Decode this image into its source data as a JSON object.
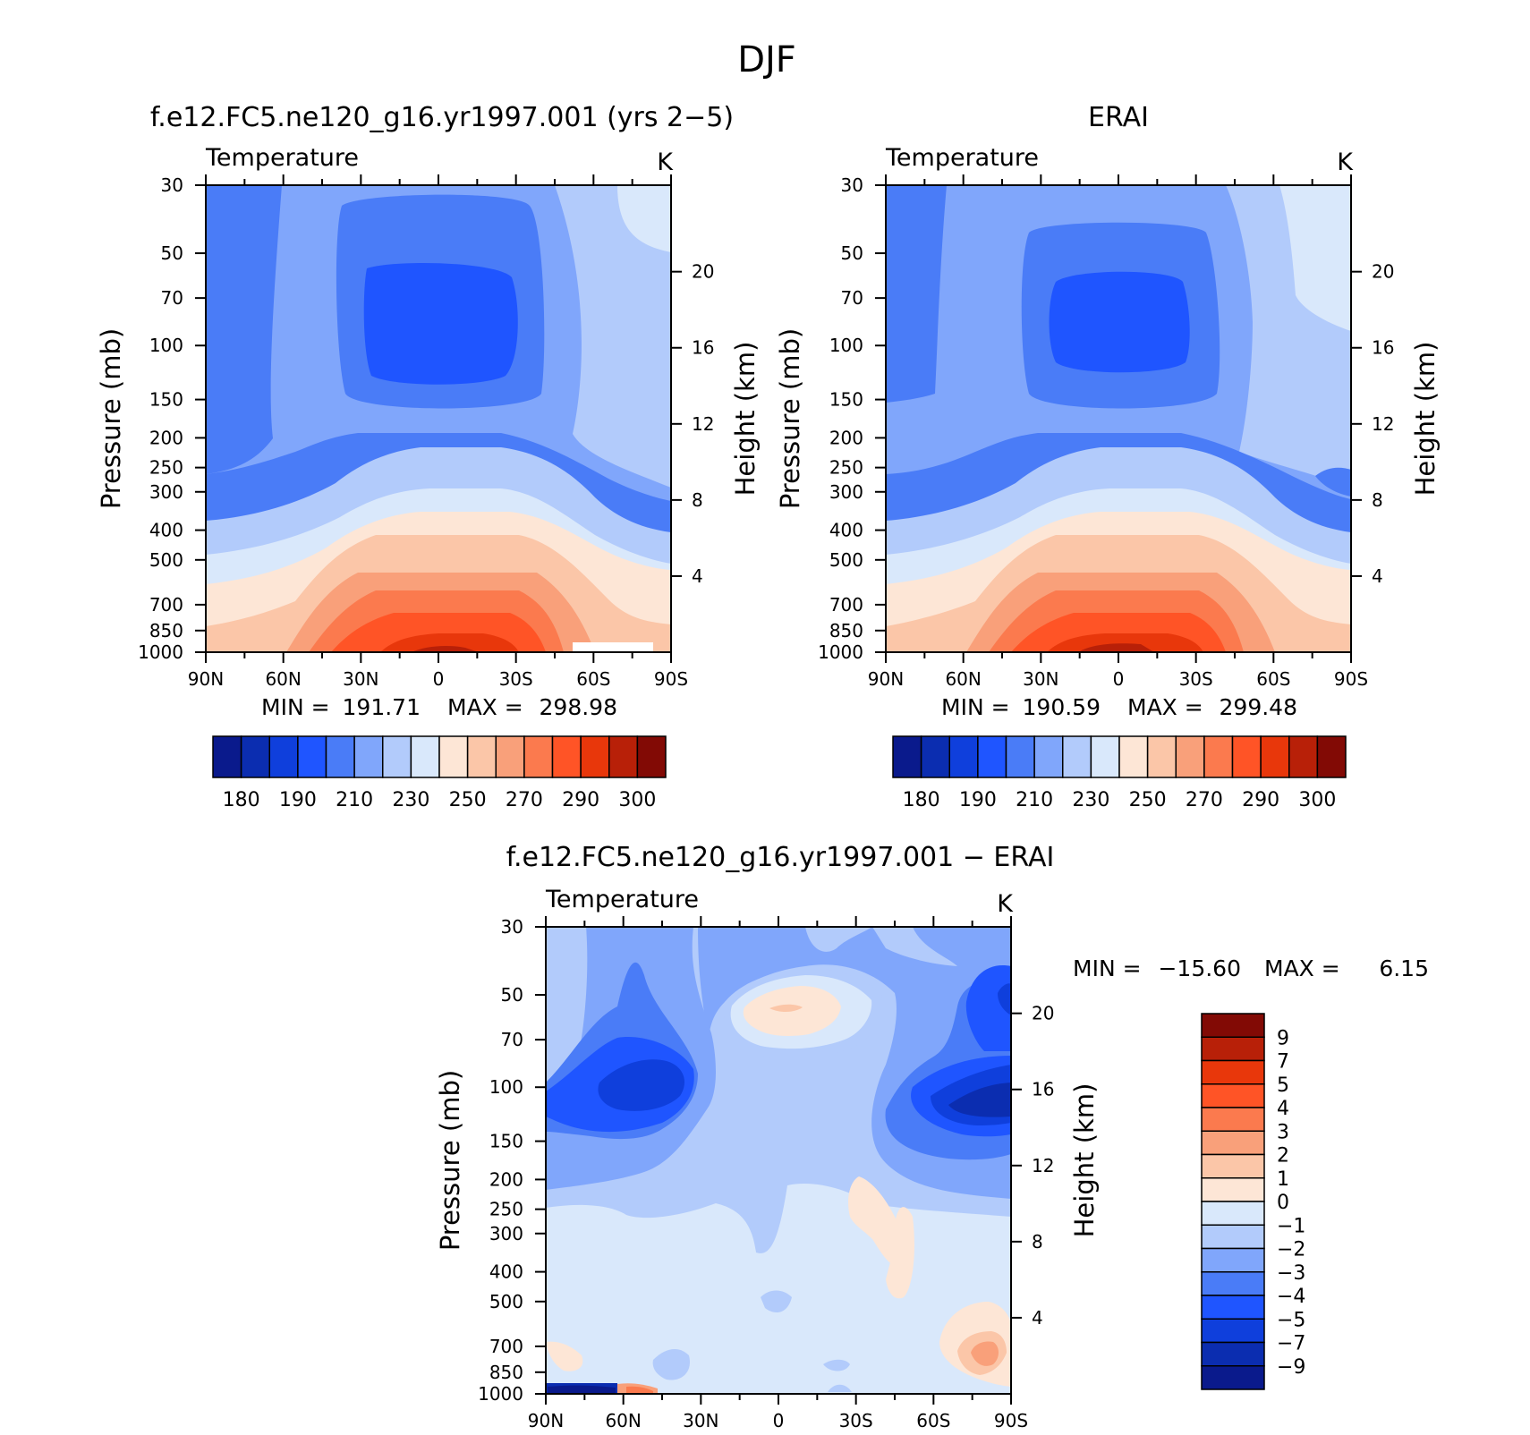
{
  "title": "DJF",
  "chart_data": [
    {
      "type": "contour",
      "title": "f.e12.FC5.ne120_g16.yr1997.001 (yrs 2−5)",
      "subtitle": "Temperature",
      "units": "K",
      "ylabel": "Pressure (mb)",
      "ylabel_right": "Height (km)",
      "x_ticks": [
        "90N",
        "60N",
        "30N",
        "0",
        "30S",
        "60S",
        "90S"
      ],
      "y_ticks": [
        "30",
        "50",
        "70",
        "100",
        "150",
        "200",
        "250",
        "300",
        "400",
        "500",
        "700",
        "850",
        "1000"
      ],
      "height_ticks": [
        "20",
        "16",
        "12",
        "8",
        "4"
      ],
      "stats": {
        "min_label": "MIN =",
        "min": "191.71",
        "max_label": "MAX =",
        "max": "298.98"
      },
      "colorbar": {
        "levels": [
          "180",
          "190",
          "210",
          "230",
          "250",
          "270",
          "290",
          "300"
        ],
        "colors": [
          "#0a1a8c",
          "#0b2db0",
          "#0f3fdc",
          "#1f55ff",
          "#4a7cf7",
          "#80a6fb",
          "#b2cbfb",
          "#d9e8fb",
          "#fde6d6",
          "#fbc6a8",
          "#f9a07a",
          "#fb7a4e",
          "#ff5426",
          "#e8370b",
          "#b82008",
          "#820a05"
        ]
      }
    },
    {
      "type": "contour",
      "title": "ERAI",
      "subtitle": "Temperature",
      "units": "K",
      "ylabel": "Pressure (mb)",
      "ylabel_right": "Height (km)",
      "x_ticks": [
        "90N",
        "60N",
        "30N",
        "0",
        "30S",
        "60S",
        "90S"
      ],
      "y_ticks": [
        "30",
        "50",
        "70",
        "100",
        "150",
        "200",
        "250",
        "300",
        "400",
        "500",
        "700",
        "850",
        "1000"
      ],
      "height_ticks": [
        "20",
        "16",
        "12",
        "8",
        "4"
      ],
      "stats": {
        "min_label": "MIN =",
        "min": "190.59",
        "max_label": "MAX =",
        "max": "299.48"
      },
      "colorbar": {
        "levels": [
          "180",
          "190",
          "210",
          "230",
          "250",
          "270",
          "290",
          "300"
        ],
        "colors": [
          "#0a1a8c",
          "#0b2db0",
          "#0f3fdc",
          "#1f55ff",
          "#4a7cf7",
          "#80a6fb",
          "#b2cbfb",
          "#d9e8fb",
          "#fde6d6",
          "#fbc6a8",
          "#f9a07a",
          "#fb7a4e",
          "#ff5426",
          "#e8370b",
          "#b82008",
          "#820a05"
        ]
      }
    },
    {
      "type": "contour",
      "title": "f.e12.FC5.ne120_g16.yr1997.001 − ERAI",
      "subtitle": "Temperature",
      "units": "K",
      "ylabel": "Pressure (mb)",
      "ylabel_right": "Height (km)",
      "x_ticks": [
        "90N",
        "60N",
        "30N",
        "0",
        "30S",
        "60S",
        "90S"
      ],
      "y_ticks": [
        "30",
        "50",
        "70",
        "100",
        "150",
        "200",
        "250",
        "300",
        "400",
        "500",
        "700",
        "850",
        "1000"
      ],
      "height_ticks": [
        "20",
        "16",
        "12",
        "8",
        "4"
      ],
      "stats": {
        "min_label": "MIN =",
        "min": "−15.60",
        "max_label": "MAX =",
        "max": "6.15"
      },
      "colorbar": {
        "levels": [
          "9",
          "7",
          "5",
          "4",
          "3",
          "2",
          "1",
          "0",
          "−1",
          "−2",
          "−3",
          "−4",
          "−5",
          "−7",
          "−9"
        ],
        "colors": [
          "#820a05",
          "#b82008",
          "#e8370b",
          "#ff5426",
          "#fb7a4e",
          "#f9a07a",
          "#fbc6a8",
          "#fde6d6",
          "#d9e8fb",
          "#b2cbfb",
          "#80a6fb",
          "#4a7cf7",
          "#1f55ff",
          "#0f3fdc",
          "#0b2db0",
          "#0a1a8c"
        ]
      }
    }
  ]
}
